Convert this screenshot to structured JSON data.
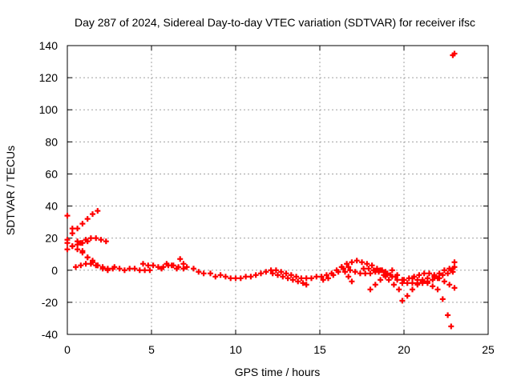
{
  "chart_data": {
    "type": "scatter",
    "title": "Day 287 of 2024, Sidereal Day-to-day VTEC variation (SDTVAR) for receiver ifsc",
    "xlabel": "GPS time / hours",
    "ylabel": "SDTVAR / TECUs",
    "xlim": [
      0,
      25
    ],
    "ylim": [
      -40,
      140
    ],
    "xticks": [
      "0",
      "5",
      "10",
      "15",
      "20",
      "25"
    ],
    "yticks": [
      "-40",
      "-20",
      "0",
      "20",
      "40",
      "60",
      "80",
      "100",
      "120",
      "140"
    ],
    "grid": true,
    "marker": "+",
    "color": "#ff0000",
    "series": [
      {
        "name": "",
        "points": [
          [
            0.0,
            34
          ],
          [
            0.3,
            26
          ],
          [
            0.6,
            18
          ],
          [
            0.9,
            12
          ],
          [
            1.2,
            8
          ],
          [
            1.5,
            5
          ],
          [
            1.8,
            3
          ],
          [
            2.1,
            2
          ],
          [
            2.4,
            1
          ],
          [
            0.0,
            17
          ],
          [
            0.3,
            15
          ],
          [
            0.6,
            13
          ],
          [
            0.9,
            11
          ],
          [
            1.2,
            8
          ],
          [
            1.5,
            6
          ],
          [
            1.8,
            3
          ],
          [
            2.1,
            1
          ],
          [
            2.4,
            0
          ],
          [
            2.7,
            1
          ],
          [
            0.0,
            19
          ],
          [
            0.3,
            23
          ],
          [
            0.6,
            26
          ],
          [
            0.9,
            29
          ],
          [
            1.2,
            32
          ],
          [
            1.5,
            35
          ],
          [
            1.8,
            37
          ],
          [
            0.0,
            13
          ],
          [
            0.3,
            15
          ],
          [
            0.6,
            16
          ],
          [
            0.9,
            17
          ],
          [
            1.2,
            18
          ],
          [
            0.8,
            17
          ],
          [
            1.1,
            19
          ],
          [
            1.4,
            20
          ],
          [
            1.7,
            20
          ],
          [
            2.0,
            19
          ],
          [
            2.3,
            18
          ],
          [
            0.5,
            2
          ],
          [
            0.8,
            3
          ],
          [
            1.1,
            4
          ],
          [
            1.4,
            4
          ],
          [
            1.7,
            3
          ],
          [
            2.8,
            2
          ],
          [
            3.1,
            1
          ],
          [
            3.4,
            0
          ],
          [
            3.7,
            1
          ],
          [
            4.0,
            1
          ],
          [
            4.3,
            0
          ],
          [
            4.6,
            0
          ],
          [
            4.9,
            0
          ],
          [
            4.5,
            4
          ],
          [
            4.8,
            3
          ],
          [
            5.1,
            3
          ],
          [
            5.4,
            2
          ],
          [
            5.7,
            2
          ],
          [
            6.0,
            3
          ],
          [
            6.3,
            3
          ],
          [
            6.6,
            2
          ],
          [
            6.9,
            1
          ],
          [
            5.6,
            1
          ],
          [
            5.9,
            4
          ],
          [
            6.2,
            3
          ],
          [
            6.5,
            1
          ],
          [
            6.7,
            7
          ],
          [
            6.9,
            4
          ],
          [
            7.1,
            2
          ],
          [
            7.5,
            1
          ],
          [
            7.8,
            -1
          ],
          [
            8.1,
            -2
          ],
          [
            8.5,
            -2
          ],
          [
            8.8,
            -4
          ],
          [
            9.1,
            -3
          ],
          [
            9.4,
            -4
          ],
          [
            9.7,
            -5
          ],
          [
            10.0,
            -5
          ],
          [
            10.3,
            -5
          ],
          [
            10.6,
            -4
          ],
          [
            10.9,
            -4
          ],
          [
            11.2,
            -3
          ],
          [
            11.5,
            -2
          ],
          [
            11.8,
            -1
          ],
          [
            12.1,
            0
          ],
          [
            12.4,
            0
          ],
          [
            12.7,
            -1
          ],
          [
            13.0,
            -2
          ],
          [
            12.2,
            -2
          ],
          [
            12.5,
            -3
          ],
          [
            12.8,
            -4
          ],
          [
            13.1,
            -5
          ],
          [
            13.4,
            -6
          ],
          [
            13.7,
            -7
          ],
          [
            14.0,
            -8
          ],
          [
            14.2,
            -9
          ],
          [
            13.3,
            -3
          ],
          [
            13.6,
            -4
          ],
          [
            13.9,
            -5
          ],
          [
            14.2,
            -5
          ],
          [
            14.5,
            -5
          ],
          [
            14.8,
            -4
          ],
          [
            15.1,
            -4
          ],
          [
            15.4,
            -3
          ],
          [
            15.7,
            -2
          ],
          [
            16.0,
            0
          ],
          [
            16.3,
            2
          ],
          [
            16.6,
            4
          ],
          [
            16.9,
            5
          ],
          [
            17.2,
            6
          ],
          [
            17.5,
            5
          ],
          [
            17.8,
            4
          ],
          [
            18.1,
            3
          ],
          [
            18.4,
            1
          ],
          [
            18.7,
            0
          ],
          [
            19.0,
            -2
          ],
          [
            19.3,
            -4
          ],
          [
            19.6,
            -6
          ],
          [
            15.2,
            -6
          ],
          [
            15.5,
            -5
          ],
          [
            15.8,
            -3
          ],
          [
            16.1,
            -1
          ],
          [
            16.4,
            1
          ],
          [
            16.7,
            2
          ],
          [
            16.3,
            2
          ],
          [
            16.5,
            -1
          ],
          [
            16.7,
            -4
          ],
          [
            16.9,
            -7
          ],
          [
            16.8,
            0
          ],
          [
            17.1,
            -1
          ],
          [
            17.4,
            -2
          ],
          [
            17.7,
            -2
          ],
          [
            18.0,
            -2
          ],
          [
            18.3,
            -1
          ],
          [
            18.6,
            0
          ],
          [
            18.9,
            -1
          ],
          [
            17.6,
            1
          ],
          [
            17.9,
            1
          ],
          [
            18.2,
            0
          ],
          [
            18.5,
            -1
          ],
          [
            18.8,
            -3
          ],
          [
            19.1,
            -6
          ],
          [
            19.4,
            -9
          ],
          [
            19.7,
            -12
          ],
          [
            18.0,
            -12
          ],
          [
            18.3,
            -9
          ],
          [
            18.6,
            -6
          ],
          [
            18.9,
            -4
          ],
          [
            19.2,
            -3
          ],
          [
            19.5,
            -4
          ],
          [
            19.3,
            0
          ],
          [
            19.6,
            -3
          ],
          [
            19.9,
            -6
          ],
          [
            19.9,
            -19
          ],
          [
            20.2,
            -16
          ],
          [
            20.5,
            -12
          ],
          [
            20.8,
            -9
          ],
          [
            21.1,
            -6
          ],
          [
            21.4,
            -5
          ],
          [
            19.9,
            -8
          ],
          [
            20.2,
            -8
          ],
          [
            20.5,
            -8
          ],
          [
            20.8,
            -8
          ],
          [
            21.1,
            -8
          ],
          [
            21.4,
            -7
          ],
          [
            21.7,
            -6
          ],
          [
            22.0,
            -5
          ],
          [
            22.3,
            -3
          ],
          [
            22.6,
            -2
          ],
          [
            22.9,
            -1
          ],
          [
            20.0,
            -6
          ],
          [
            20.3,
            -5
          ],
          [
            20.6,
            -4
          ],
          [
            20.9,
            -3
          ],
          [
            21.2,
            -2
          ],
          [
            21.5,
            -2
          ],
          [
            21.8,
            -3
          ],
          [
            22.1,
            -5
          ],
          [
            22.4,
            -7
          ],
          [
            22.7,
            -9
          ],
          [
            23.0,
            -11
          ],
          [
            20.5,
            -5
          ],
          [
            20.8,
            -6
          ],
          [
            21.1,
            -7
          ],
          [
            21.4,
            -8
          ],
          [
            21.7,
            -10
          ],
          [
            22.0,
            -12
          ],
          [
            22.3,
            -18
          ],
          [
            22.6,
            -28
          ],
          [
            22.8,
            -35
          ],
          [
            21.8,
            -4
          ],
          [
            22.1,
            -2
          ],
          [
            22.4,
            0
          ],
          [
            22.7,
            1
          ],
          [
            23.0,
            2
          ],
          [
            23.0,
            5
          ],
          [
            22.9,
            1
          ],
          [
            22.8,
            0
          ],
          [
            22.9,
            134
          ],
          [
            23.0,
            135
          ]
        ]
      }
    ]
  }
}
